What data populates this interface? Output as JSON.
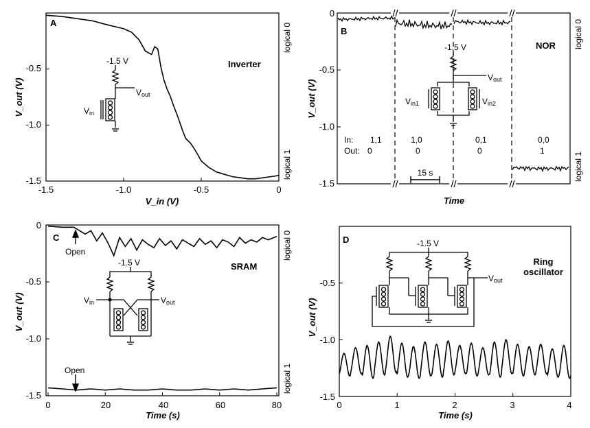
{
  "chart_data": [
    {
      "panel": "A",
      "type": "line",
      "title": "Inverter",
      "xlabel": "V_in (V)",
      "ylabel": "V_out (V)",
      "xlim": [
        -1.5,
        0
      ],
      "ylim": [
        -1.5,
        0
      ],
      "xticks": [
        "-1.5",
        "-1.0",
        "-0.5",
        "0"
      ],
      "yticks": [
        "-1.5",
        "-1.0",
        "-0.5"
      ],
      "right_labels": [
        "logical 0",
        "logical 1"
      ],
      "circuit_labels": [
        "-1.5 V",
        "V",
        "out",
        "V",
        "in"
      ],
      "x": [
        -1.5,
        -1.4,
        -1.3,
        -1.2,
        -1.12,
        -1.06,
        -1.0,
        -0.95,
        -0.9,
        -0.86,
        -0.82,
        -0.8,
        -0.78,
        -0.76,
        -0.74,
        -0.72,
        -0.7,
        -0.68,
        -0.65,
        -0.62,
        -0.6,
        -0.57,
        -0.55,
        -0.52,
        -0.5,
        -0.45,
        -0.4,
        -0.35,
        -0.3,
        -0.25,
        -0.2,
        -0.15,
        -0.1,
        -0.05,
        0
      ],
      "y": [
        -0.02,
        -0.03,
        -0.05,
        -0.07,
        -0.1,
        -0.12,
        -0.14,
        -0.17,
        -0.24,
        -0.34,
        -0.37,
        -0.3,
        -0.32,
        -0.48,
        -0.6,
        -0.68,
        -0.74,
        -0.82,
        -0.93,
        -1.05,
        -1.12,
        -1.16,
        -1.2,
        -1.27,
        -1.32,
        -1.38,
        -1.42,
        -1.44,
        -1.46,
        -1.47,
        -1.48,
        -1.48,
        -1.47,
        -1.46,
        -1.45
      ]
    },
    {
      "panel": "B",
      "type": "line",
      "title": "NOR",
      "xlabel": "Time",
      "ylabel": "V_out (V)",
      "ylim": [
        -1.5,
        0
      ],
      "yticks": [
        "-1.5",
        "-1.0",
        "-0.5",
        "0"
      ],
      "right_labels": [
        "logical 0",
        "logical 1"
      ],
      "circuit_labels": [
        "-1.5 V",
        "V",
        "out",
        "V",
        "in1",
        "V",
        "in2"
      ],
      "scale_bar": "15 s",
      "inputs_label": "In:",
      "outputs_label": "Out:",
      "states": [
        {
          "in": "1,1",
          "out": "0",
          "level": -0.05
        },
        {
          "in": "1,0",
          "out": "0",
          "level": -0.1
        },
        {
          "in": "0,1",
          "out": "0",
          "level": -0.08
        },
        {
          "in": "0,0",
          "out": "1",
          "level": -1.36
        }
      ]
    },
    {
      "panel": "C",
      "type": "line",
      "title": "SRAM",
      "xlabel": "Time (s)",
      "ylabel": "V_out (V)",
      "xlim": [
        0,
        80
      ],
      "ylim": [
        -1.5,
        0
      ],
      "xticks": [
        "0",
        "20",
        "40",
        "60",
        "80"
      ],
      "yticks": [
        "-1.5",
        "-1.0",
        "-0.5",
        "0"
      ],
      "right_labels": [
        "logical 0",
        "logical 1"
      ],
      "annotations": [
        "Open",
        "Open"
      ],
      "circuit_labels": [
        "-1.5 V",
        "V",
        "in",
        "V",
        "out"
      ],
      "series": [
        {
          "x": [
            0,
            5,
            9,
            11,
            13,
            15,
            17,
            19,
            21,
            23,
            25,
            27,
            29,
            31,
            33,
            35,
            37,
            39,
            41,
            43,
            45,
            47,
            49,
            51,
            53,
            55,
            57,
            59,
            61,
            63,
            65,
            67,
            69,
            71,
            73,
            75,
            77,
            80
          ],
          "y": [
            -0.01,
            -0.02,
            -0.02,
            -0.05,
            -0.08,
            -0.05,
            -0.14,
            -0.07,
            -0.16,
            -0.27,
            -0.11,
            -0.19,
            -0.12,
            -0.22,
            -0.13,
            -0.17,
            -0.2,
            -0.12,
            -0.18,
            -0.14,
            -0.21,
            -0.13,
            -0.16,
            -0.19,
            -0.12,
            -0.17,
            -0.14,
            -0.2,
            -0.13,
            -0.15,
            -0.19,
            -0.11,
            -0.16,
            -0.13,
            -0.15,
            -0.11,
            -0.13,
            -0.1
          ]
        },
        {
          "x": [
            0,
            5,
            10,
            15,
            20,
            25,
            30,
            35,
            40,
            45,
            50,
            55,
            60,
            65,
            70,
            75,
            80
          ],
          "y": [
            -1.43,
            -1.44,
            -1.45,
            -1.44,
            -1.45,
            -1.44,
            -1.45,
            -1.45,
            -1.44,
            -1.45,
            -1.45,
            -1.44,
            -1.45,
            -1.44,
            -1.45,
            -1.44,
            -1.43
          ]
        }
      ]
    },
    {
      "panel": "D",
      "type": "line",
      "title": "Ring oscillator",
      "xlabel": "Time (s)",
      "ylabel": "V_out (V)",
      "xlim": [
        0,
        4
      ],
      "ylim": [
        -1.5,
        0
      ],
      "xticks": [
        "0",
        "1",
        "2",
        "3",
        "4"
      ],
      "yticks": [
        "-1.5",
        "-1.0",
        "-0.5"
      ],
      "circuit_labels": [
        "-1.5 V",
        "V",
        "out"
      ],
      "peaks": [
        -1.12,
        -1.07,
        -1.05,
        -1.02,
        -0.97,
        -1.03,
        -1.06,
        -1.02,
        -1.04,
        -1.01,
        -1.05,
        -1.03,
        -1.07,
        -1.02,
        -1.0,
        -1.04,
        -1.06,
        -1.04,
        -1.08,
        -1.05
      ],
      "troughs": [
        -1.32,
        -1.3,
        -1.34,
        -1.31,
        -1.29,
        -1.33,
        -1.34,
        -1.32,
        -1.33,
        -1.31,
        -1.3,
        -1.32,
        -1.31,
        -1.33,
        -1.3,
        -1.32,
        -1.31,
        -1.3,
        -1.33,
        -1.34
      ]
    }
  ]
}
